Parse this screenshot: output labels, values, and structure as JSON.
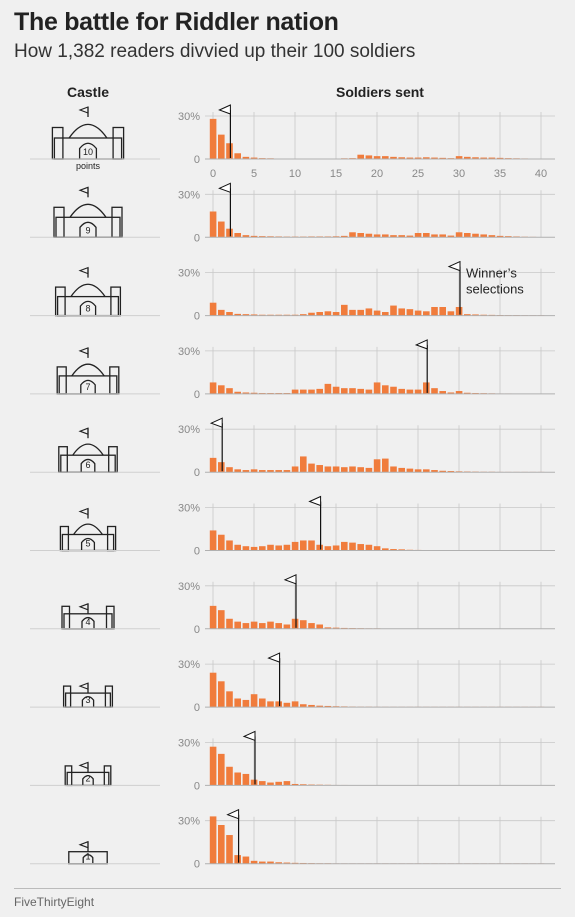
{
  "title": "The battle for Riddler nation",
  "subtitle": "How 1,382 readers divvied up their 100 soldiers",
  "castle_header": "Castle",
  "soldiers_header": "Soldiers sent",
  "footer": "FiveThirtyEight",
  "colors": {
    "bar": "#f07c3c",
    "axis": "#b0b0b0",
    "grid": "#c8c8c8",
    "castle": "#222222"
  },
  "chart_data": {
    "type": "bar",
    "title": "The battle for Riddler nation",
    "subtitle": "How 1,382 readers divvied up their 100 soldiers",
    "xlabel": "Soldiers sent",
    "ylabel": "",
    "xlim": [
      0,
      40
    ],
    "ylim": [
      0,
      30
    ],
    "x_ticks": [
      0,
      5,
      10,
      15,
      20,
      25,
      30,
      35,
      40
    ],
    "y_ticks": [
      "0",
      "30%"
    ],
    "annotation": "Winner’s selections",
    "point_label": "points",
    "castles": [
      {
        "castle": 10,
        "label": "10",
        "winner": 2,
        "values": [
          28,
          17,
          11,
          4,
          1.5,
          1,
          0.6,
          0.5,
          0.3,
          0.3,
          0.3,
          0.3,
          0.3,
          0.3,
          0.3,
          0.3,
          0.5,
          0.6,
          3,
          2.5,
          2,
          2,
          1.5,
          1.2,
          1,
          1,
          1.2,
          1,
          0.8,
          0.6,
          2,
          1.5,
          1.2,
          1,
          1,
          0.8,
          0.6,
          0.5,
          0.4,
          0.3,
          0.2
        ]
      },
      {
        "castle": 9,
        "label": "9",
        "winner": 2,
        "values": [
          18,
          11,
          6,
          3,
          1.5,
          1,
          0.8,
          0.7,
          0.6,
          0.5,
          0.5,
          0.5,
          0.6,
          0.6,
          0.6,
          0.7,
          1,
          3.5,
          3,
          2.5,
          2,
          2,
          1.5,
          1.5,
          1.2,
          3,
          3,
          2,
          2,
          1.2,
          3.5,
          3,
          2.5,
          2,
          1.5,
          1,
          0.8,
          0.6,
          0.4,
          0.3,
          0.2
        ]
      },
      {
        "castle": 8,
        "label": "8",
        "winner": 30,
        "values": [
          9,
          4,
          2.5,
          1.2,
          1,
          0.8,
          0.6,
          0.6,
          0.6,
          0.6,
          0.6,
          1,
          2,
          2.5,
          3,
          2.5,
          7.5,
          4,
          4,
          5,
          3.5,
          2.5,
          7,
          5,
          4.5,
          3.5,
          3,
          6,
          6,
          3,
          6,
          1,
          0.8,
          0.6,
          0.5,
          0.4,
          0.3,
          0.3,
          0.2,
          0.2,
          0.2
        ]
      },
      {
        "castle": 7,
        "label": "7",
        "winner": 26,
        "values": [
          8,
          6,
          4,
          1.5,
          1,
          0.8,
          0.6,
          0.6,
          0.6,
          0.6,
          3,
          3,
          3,
          3.5,
          7,
          5,
          4,
          4,
          3.5,
          3,
          8,
          6,
          5,
          3.5,
          3,
          3,
          8,
          4,
          2,
          1,
          2,
          0.8,
          0.6,
          0.5,
          0.4,
          0.3,
          0.3,
          0.2,
          0.2,
          0.2,
          0.2
        ]
      },
      {
        "castle": 6,
        "label": "6",
        "winner": 1,
        "values": [
          10,
          7,
          3.5,
          2,
          1.5,
          2,
          1.5,
          1.5,
          1.5,
          1.5,
          4,
          11,
          6,
          5,
          4,
          4,
          3.5,
          4,
          3.5,
          3,
          9,
          9.5,
          4,
          3,
          2.5,
          2,
          2,
          1.5,
          1,
          0.8,
          0.6,
          0.5,
          0.4,
          0.3,
          0.3,
          0.2,
          0.2,
          0.2,
          0.2,
          0.2,
          0.2
        ]
      },
      {
        "castle": 5,
        "label": "5",
        "winner": 13,
        "values": [
          14,
          11,
          7,
          4,
          3,
          2.5,
          3,
          4,
          3.5,
          4,
          6,
          7,
          7,
          4,
          3,
          3.5,
          6,
          5.5,
          4.5,
          4,
          3,
          1.5,
          1,
          0.8,
          0.5,
          0.4,
          0.3,
          0.3,
          0.2,
          0.2,
          0.2,
          0.2,
          0.2,
          0.2,
          0.2,
          0.2,
          0.2,
          0.2,
          0.2,
          0.2,
          0.2
        ]
      },
      {
        "castle": 4,
        "label": "4",
        "winner": 10,
        "values": [
          16,
          13,
          7,
          5,
          4,
          5,
          4,
          5,
          4,
          3,
          7,
          6,
          4,
          3,
          1,
          0.8,
          0.6,
          0.5,
          0.4,
          0.3,
          0.3,
          0.2,
          0.2,
          0.2,
          0.2,
          0.2,
          0.2,
          0.2,
          0.2,
          0.2,
          0.2,
          0.2,
          0.2,
          0.2,
          0.2,
          0.2,
          0.2,
          0.2,
          0.2,
          0.2,
          0.2
        ]
      },
      {
        "castle": 3,
        "label": "3",
        "winner": 8,
        "values": [
          24,
          18,
          11,
          6,
          5,
          9,
          6,
          4,
          4,
          3,
          4,
          2,
          1.5,
          1,
          0.8,
          0.6,
          0.5,
          0.4,
          0.3,
          0.3,
          0.2,
          0.2,
          0.2,
          0.2,
          0.2,
          0.2,
          0.2,
          0.2,
          0.2,
          0.2,
          0.2,
          0.2,
          0.2,
          0.2,
          0.2,
          0.2,
          0.2,
          0.2,
          0.2,
          0.2,
          0.2
        ]
      },
      {
        "castle": 2,
        "label": "2",
        "winner": 5,
        "values": [
          27,
          22,
          13,
          9,
          8,
          4,
          3,
          2,
          2.5,
          3,
          1,
          0.8,
          0.6,
          0.5,
          0.4,
          0.3,
          0.3,
          0.2,
          0.2,
          0.2,
          0.2,
          0.2,
          0.2,
          0.2,
          0.2,
          0.2,
          0.2,
          0.2,
          0.2,
          0.2,
          0.2,
          0.2,
          0.2,
          0.2,
          0.2,
          0.2,
          0.2,
          0.2,
          0.2,
          0.2,
          0.2
        ]
      },
      {
        "castle": 1,
        "label": "1",
        "winner": 3,
        "values": [
          33,
          27,
          20,
          6,
          5,
          2,
          1.5,
          1.5,
          1,
          0.8,
          0.6,
          0.5,
          0.4,
          0.3,
          0.3,
          0.2,
          0.2,
          0.2,
          0.2,
          0.2,
          0.2,
          0.2,
          0.2,
          0.2,
          0.2,
          0.2,
          0.2,
          0.2,
          0.2,
          0.2,
          0.2,
          0.2,
          0.2,
          0.2,
          0.2,
          0.2,
          0.2,
          0.2,
          0.2,
          0.2,
          0.2
        ]
      }
    ]
  }
}
